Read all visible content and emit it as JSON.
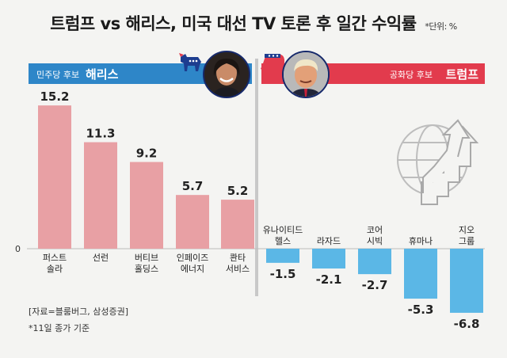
{
  "title": "트럼프 vs 해리스, 미국 대선 TV 토론 후 일간 수익률",
  "unit": "*단위: %",
  "harris": {
    "party": "민주당 후보",
    "name": "해리스"
  },
  "trump": {
    "party": "공화당 후보",
    "name": "트럼프"
  },
  "source": "[자료=블룸버그, 삼성증권]",
  "note": "*11일 종가 기준",
  "colors": {
    "harris": "#2e86c8",
    "trump": "#e23b4d",
    "positive_bar": "#e8a0a4",
    "negative_bar": "#5bb7e6"
  },
  "chart_data": {
    "type": "bar",
    "zero_label": "0",
    "ylim": [
      -7.5,
      16
    ],
    "categories": [
      [
        "퍼스트",
        "솔라"
      ],
      [
        "선런"
      ],
      [
        "버티브",
        "홀딩스"
      ],
      [
        "인페이즈",
        "에너지"
      ],
      [
        "콴타",
        "서비스"
      ],
      [
        "유나이티드",
        "헬스"
      ],
      [
        "라자드"
      ],
      [
        "코어",
        "시빅"
      ],
      [
        "휴마나"
      ],
      [
        "지오",
        "그룹"
      ]
    ],
    "values": [
      15.2,
      11.3,
      9.2,
      5.7,
      5.2,
      -1.5,
      -2.1,
      -2.7,
      -5.3,
      -6.8
    ],
    "value_labels": [
      "15.2",
      "11.3",
      "9.2",
      "5.7",
      "5.2",
      "-1.5",
      "-2.1",
      "-2.7",
      "-5.3",
      "-6.8"
    ]
  }
}
